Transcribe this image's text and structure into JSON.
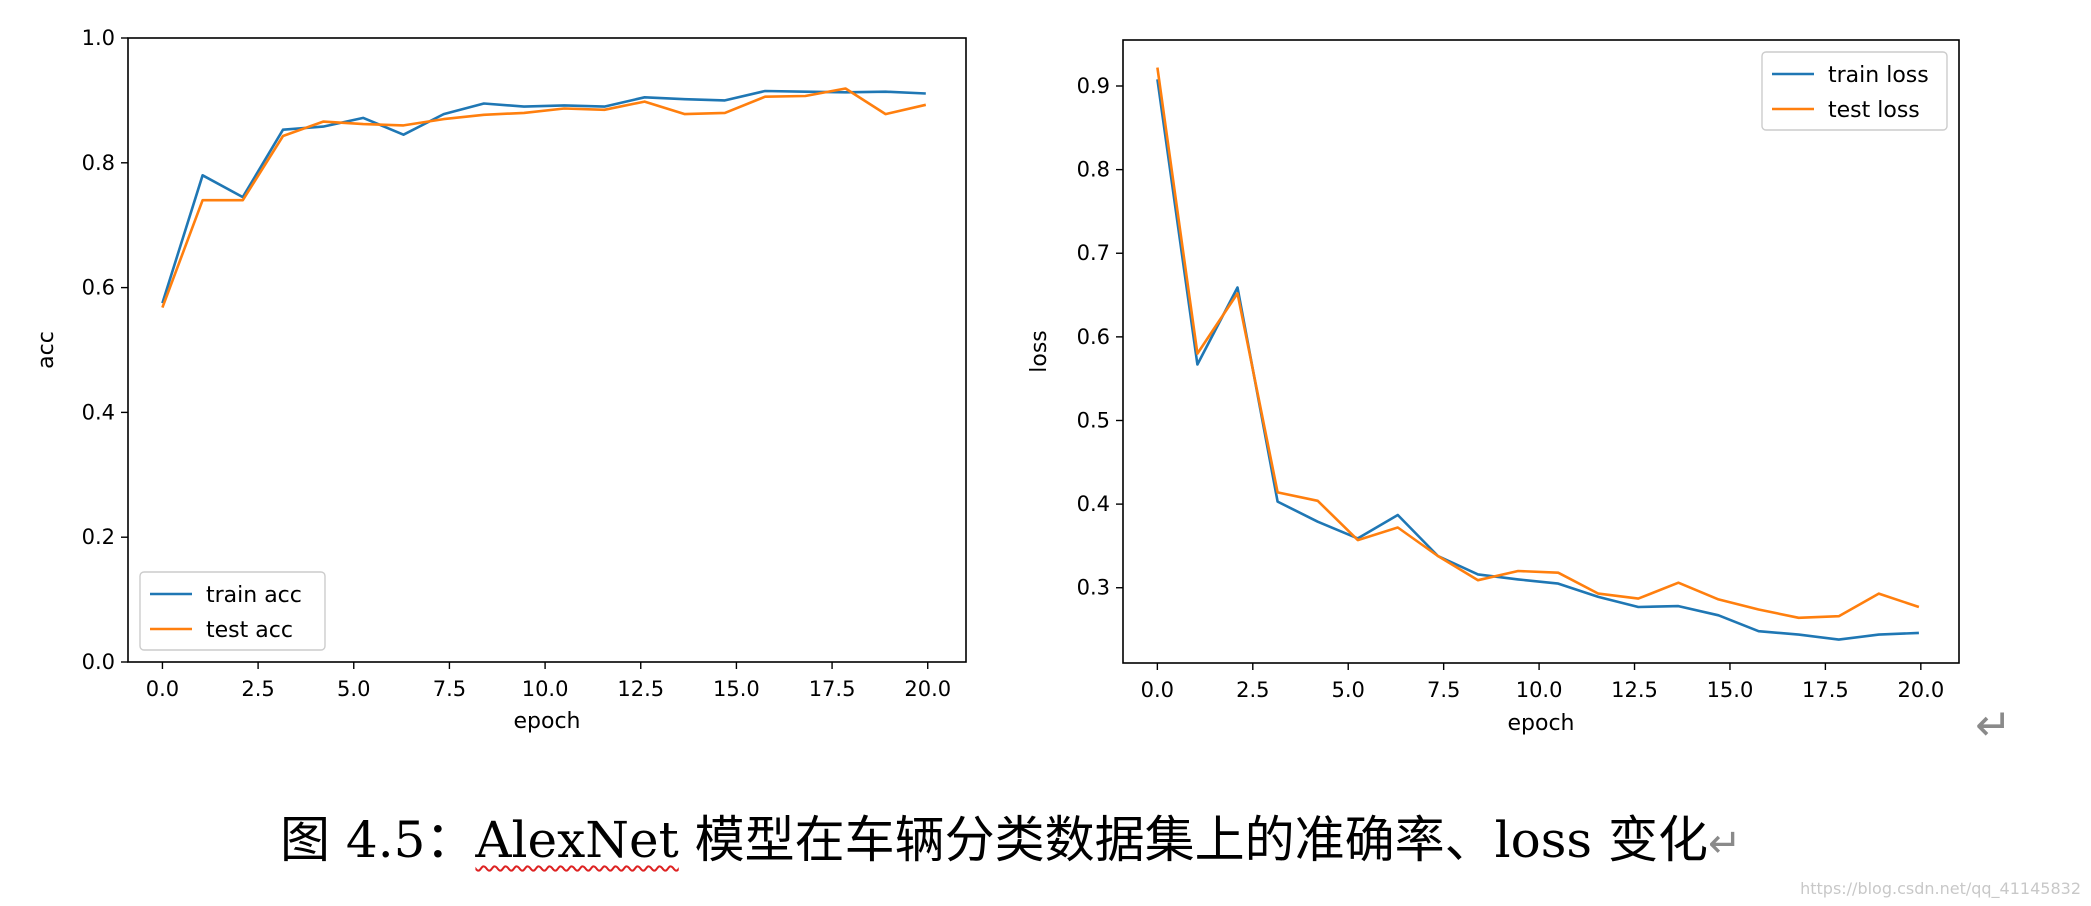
{
  "chart_data": [
    {
      "type": "line",
      "title": "",
      "xlabel": "epoch",
      "ylabel": "acc",
      "xlim": [
        -0.9,
        21.0
      ],
      "ylim": [
        0.0,
        1.0
      ],
      "xticks": [
        "0.0",
        "2.5",
        "5.0",
        "7.5",
        "10.0",
        "12.5",
        "15.0",
        "17.5",
        "20.0"
      ],
      "yticks": [
        "0.0",
        "0.2",
        "0.4",
        "0.6",
        "0.8",
        "1.0"
      ],
      "legend_position": "lower-left",
      "grid": false,
      "x": [
        0,
        1.05,
        2.1,
        3.15,
        4.2,
        5.25,
        6.3,
        7.35,
        8.4,
        9.45,
        10.5,
        11.55,
        12.6,
        13.65,
        14.7,
        15.75,
        16.8,
        17.85,
        18.9,
        19.95
      ],
      "series": [
        {
          "name": "train acc",
          "color": "#1f77b4",
          "values": [
            0.575,
            0.78,
            0.745,
            0.853,
            0.858,
            0.872,
            0.845,
            0.878,
            0.895,
            0.89,
            0.892,
            0.89,
            0.905,
            0.902,
            0.9,
            0.915,
            0.914,
            0.913,
            0.914,
            0.911
          ]
        },
        {
          "name": "test acc",
          "color": "#ff7f0e",
          "values": [
            0.568,
            0.74,
            0.74,
            0.843,
            0.866,
            0.862,
            0.86,
            0.87,
            0.877,
            0.88,
            0.887,
            0.885,
            0.898,
            0.878,
            0.88,
            0.906,
            0.907,
            0.919,
            0.878,
            0.893
          ]
        }
      ]
    },
    {
      "type": "line",
      "title": "",
      "xlabel": "epoch",
      "ylabel": "loss",
      "xlim": [
        -0.9,
        21.0
      ],
      "ylim": [
        0.21,
        0.955
      ],
      "xticks": [
        "0.0",
        "2.5",
        "5.0",
        "7.5",
        "10.0",
        "12.5",
        "15.0",
        "17.5",
        "20.0"
      ],
      "yticks": [
        "0.3",
        "0.4",
        "0.5",
        "0.6",
        "0.7",
        "0.8",
        "0.9"
      ],
      "legend_position": "upper-right",
      "grid": false,
      "x": [
        0,
        1.05,
        2.1,
        3.15,
        4.2,
        5.25,
        6.3,
        7.35,
        8.4,
        9.45,
        10.5,
        11.55,
        12.6,
        13.65,
        14.7,
        15.75,
        16.8,
        17.85,
        18.9,
        19.95
      ],
      "series": [
        {
          "name": "train loss",
          "color": "#1f77b4",
          "values": [
            0.908,
            0.567,
            0.659,
            0.403,
            0.379,
            0.359,
            0.387,
            0.338,
            0.316,
            0.31,
            0.305,
            0.289,
            0.277,
            0.278,
            0.267,
            0.248,
            0.244,
            0.238,
            0.244,
            0.246
          ]
        },
        {
          "name": "test loss",
          "color": "#ff7f0e",
          "values": [
            0.922,
            0.58,
            0.652,
            0.414,
            0.404,
            0.357,
            0.372,
            0.338,
            0.309,
            0.32,
            0.318,
            0.293,
            0.287,
            0.306,
            0.286,
            0.274,
            0.264,
            0.266,
            0.293,
            0.277
          ]
        }
      ]
    }
  ],
  "caption": {
    "prefix": "图 4.5：",
    "model": "AlexNet",
    "suffix": " 模型在车辆分类数据集上的准确率、loss 变化",
    "return_symbol": "↵"
  },
  "return_mark": "↵",
  "watermark": "https://blog.csdn.net/qq_41145832"
}
